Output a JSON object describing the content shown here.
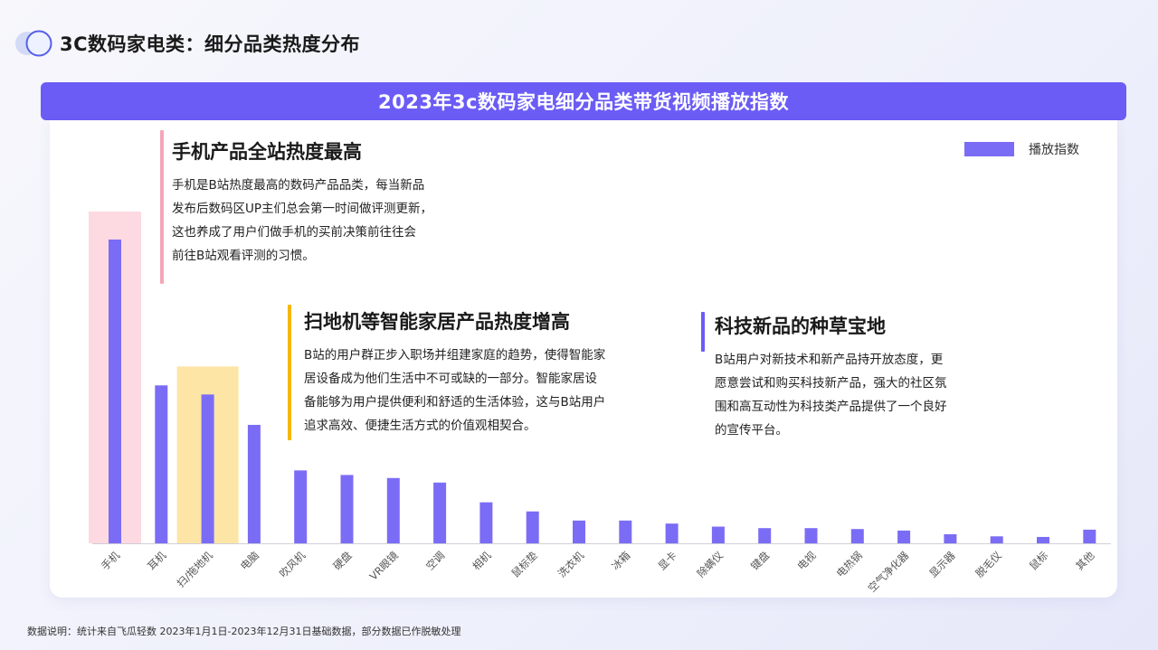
{
  "page_title": "3C数码家电类：细分品类热度分布",
  "banner_title": "2023年3c数码家电细分品类带货视频播放指数",
  "legend_label": "播放指数",
  "annotations": [
    {
      "title": "手机产品全站热度最高",
      "body": [
        "手机是B站热度最高的数码产品品类，每当新品",
        "发布后数码区UP主们总会第一时间做评测更新，",
        "这也养成了用户们做手机的买前决策前往往会",
        "前往B站观看评测的习惯。"
      ],
      "accent": "#f4a7b9"
    },
    {
      "title": "扫地机等智能家居产品热度增高",
      "body": [
        "B站的用户群正步入职场并组建家庭的趋势，使得智能家",
        "居设备成为他们生活中不可或缺的一部分。智能家居设",
        "备能够为用户提供便利和舒适的生活体验，这与B站用户",
        "追求高效、便捷生活方式的价值观相契合。"
      ],
      "accent": "#f5b800"
    },
    {
      "title": "科技新品的种草宝地",
      "body": [
        "B站用户对新技术和新产品持开放态度，更",
        "愿意尝试和购买科技新产品，强大的社区氛",
        "围和高互动性为科技类产品提供了一个良好",
        "的宣传平台。"
      ],
      "accent": "#6b5cf5"
    }
  ],
  "footnote": "数据说明：统计来自飞瓜轻数 2023年1月1日-2023年12月31日基础数据，部分数据已作脱敏处理",
  "colors": {
    "bar": "#7b6cf6",
    "highlight_phone": "#fdd9e1",
    "highlight_robot": "#fde5a6",
    "banner": "#6b5cf5"
  },
  "chart_data": {
    "type": "bar",
    "categories": [
      "手机",
      "耳机",
      "扫/拖地机",
      "电脑",
      "吹风机",
      "硬盘",
      "VR眼镜",
      "空调",
      "相机",
      "鼠标垫",
      "洗衣机",
      "冰箱",
      "显卡",
      "除螨仪",
      "键盘",
      "电视",
      "电热锅",
      "空气净化器",
      "显示器",
      "脱毛仪",
      "鼠标",
      "其他"
    ],
    "series": [
      {
        "name": "播放指数",
        "values": [
          100,
          52,
          49,
          39,
          24,
          22.5,
          21.5,
          20,
          13.5,
          10.5,
          7.5,
          7.5,
          6.5,
          5.5,
          5,
          5,
          4.7,
          4.2,
          3,
          2.3,
          2.1,
          4.5
        ]
      }
    ],
    "highlighted_categories": [
      "手机",
      "扫/拖地机"
    ],
    "ylim": [
      0,
      100
    ],
    "legend_position": "top-right",
    "grid": false
  }
}
